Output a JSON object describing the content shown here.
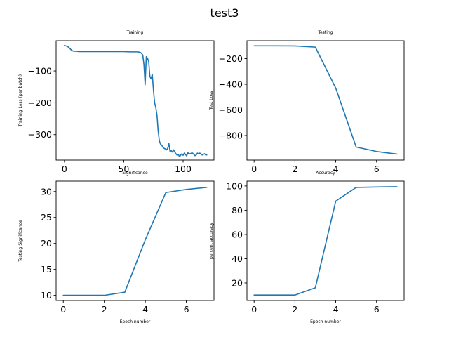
{
  "figure": {
    "title": "test3",
    "line_color": "#1f77b4"
  },
  "chart_data": [
    {
      "type": "line",
      "title": "Training",
      "xlabel": "",
      "ylabel": "Training Loss (per batch)",
      "xlim": [
        -7,
        126
      ],
      "ylim": [
        -380,
        -5
      ],
      "xticks": [
        0,
        50,
        100
      ],
      "yticks": [
        -100,
        -200,
        -300
      ],
      "grid": false,
      "x": [
        0,
        1,
        2,
        3,
        4,
        5,
        6,
        7,
        8,
        9,
        10,
        12,
        15,
        20,
        30,
        40,
        50,
        55,
        60,
        62,
        63,
        64,
        65,
        66,
        67,
        67.5,
        68,
        69,
        70,
        71,
        72,
        73,
        74,
        75,
        76,
        77,
        78,
        79,
        80,
        81,
        82,
        83,
        84,
        85,
        86,
        87,
        88,
        89,
        90,
        91,
        92,
        93,
        94,
        95,
        96,
        97,
        98,
        99,
        100,
        101,
        102,
        103,
        104,
        105,
        106,
        107,
        108,
        109,
        110,
        111,
        112,
        113,
        114,
        115,
        116,
        117,
        118,
        119,
        120
      ],
      "y": [
        -20,
        -21,
        -22,
        -24,
        -27,
        -31,
        -35,
        -37,
        -38,
        -38,
        -38,
        -39,
        -39,
        -39,
        -39,
        -39,
        -39,
        -40,
        -40,
        -40,
        -41,
        -42,
        -45,
        -50,
        -80,
        -110,
        -143,
        -55,
        -60,
        -70,
        -117,
        -125,
        -110,
        -160,
        -200,
        -215,
        -240,
        -290,
        -320,
        -330,
        -333,
        -340,
        -343,
        -345,
        -348,
        -343,
        -328,
        -353,
        -350,
        -355,
        -348,
        -355,
        -360,
        -365,
        -362,
        -370,
        -364,
        -360,
        -365,
        -358,
        -362,
        -367,
        -357,
        -360,
        -360,
        -358,
        -358,
        -362,
        -366,
        -364,
        -358,
        -360,
        -358,
        -360,
        -364,
        -362,
        -360,
        -364,
        -364
      ]
    },
    {
      "type": "line",
      "title": "Testing",
      "xlabel": "",
      "ylabel": "Test Loss",
      "xlim": [
        -0.35,
        7.35
      ],
      "ylim": [
        -992,
        -60
      ],
      "xticks": [
        0,
        2,
        4,
        6
      ],
      "yticks": [
        -200,
        -400,
        -600,
        -800
      ],
      "grid": false,
      "x": [
        0,
        1,
        2,
        3,
        4,
        5,
        6,
        7
      ],
      "y": [
        -100,
        -100,
        -101,
        -110,
        -430,
        -890,
        -925,
        -945
      ]
    },
    {
      "type": "line",
      "title": "Significance",
      "xlabel": "Epoch number",
      "ylabel": "Testing Significance",
      "xlim": [
        -0.35,
        7.35
      ],
      "ylim": [
        9.0,
        32.0
      ],
      "xticks": [
        0,
        2,
        4,
        6
      ],
      "yticks": [
        10,
        15,
        20,
        25,
        30
      ],
      "grid": false,
      "x": [
        0,
        1,
        2,
        3,
        4,
        5,
        6,
        7
      ],
      "y": [
        10.0,
        10.0,
        10.0,
        10.6,
        20.7,
        29.8,
        30.4,
        30.8
      ]
    },
    {
      "type": "line",
      "title": "Accuracy",
      "xlabel": "Epoch number",
      "ylabel": "percent accuracy",
      "xlim": [
        -0.35,
        7.35
      ],
      "ylim": [
        5.5,
        104
      ],
      "xticks": [
        0,
        2,
        4,
        6
      ],
      "yticks": [
        20,
        40,
        60,
        80,
        100
      ],
      "grid": false,
      "x": [
        0,
        1,
        2,
        3,
        4,
        5,
        6,
        7
      ],
      "y": [
        10,
        10,
        10,
        16,
        87.5,
        98.8,
        99.2,
        99.4
      ]
    }
  ]
}
